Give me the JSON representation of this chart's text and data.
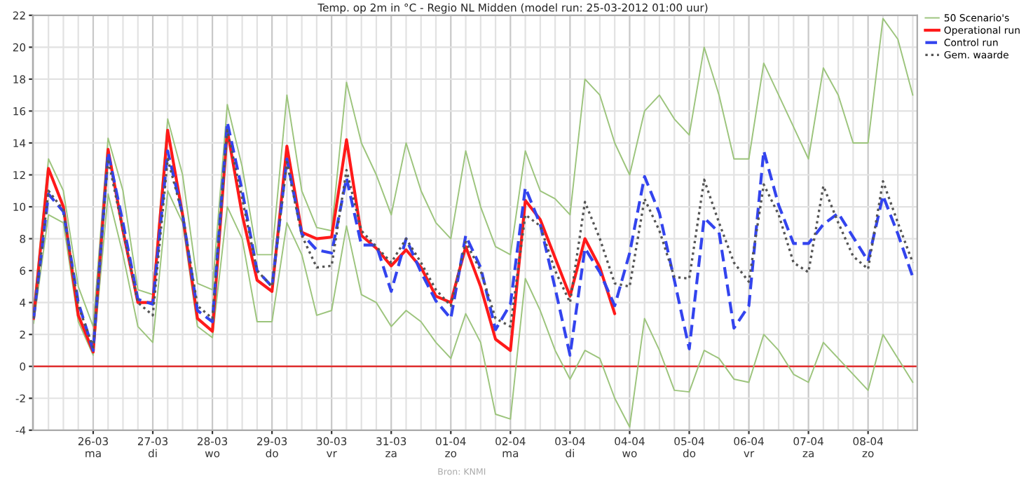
{
  "chart_data": {
    "type": "line",
    "title": "Temp. op 2m in °C - Regio NL Midden (model run: 25-03-2012 01:00 uur)",
    "ylim": [
      -4,
      22
    ],
    "yticks": [
      -4,
      -2,
      0,
      2,
      4,
      6,
      8,
      10,
      12,
      14,
      16,
      18,
      20,
      22
    ],
    "categories": [
      null,
      null,
      null,
      null,
      "26-03\nma",
      null,
      null,
      null,
      "27-03\ndi",
      null,
      null,
      null,
      "28-03\nwo",
      null,
      null,
      null,
      "29-03\ndo",
      null,
      null,
      null,
      "30-03\nvr",
      null,
      null,
      null,
      "31-03\nza",
      null,
      null,
      null,
      "01-04\nzo",
      null,
      null,
      null,
      "02-04\nma",
      null,
      null,
      null,
      "03-04\ndi",
      null,
      null,
      null,
      "04-04\nwo",
      null,
      null,
      null,
      "05-04\ndo",
      null,
      null,
      null,
      "06-04\nvr",
      null,
      null,
      null,
      "07-04\nza",
      null,
      null,
      null,
      "08-04\nzo",
      null,
      null,
      null
    ],
    "grid": true,
    "legend": "top right",
    "ref_lines": [
      {
        "axis": "y",
        "value": 0,
        "color": "#e03030"
      }
    ],
    "annotations": [
      "Bron: KNMI"
    ],
    "series": [
      {
        "name": "50 Scenario's",
        "color": "#9cc47c",
        "line_style": "solid",
        "values": [
          3.5,
          13,
          11,
          5,
          2.5,
          14.3,
          11,
          4.8,
          4.5,
          15.5,
          12,
          5.2,
          4.8,
          16.4,
          12.5,
          7,
          7,
          17,
          11,
          8.7,
          8.5,
          17.8,
          14,
          12,
          9.5,
          14,
          11,
          9,
          8,
          13.5,
          10,
          7.5,
          7,
          13.5,
          11,
          10.5,
          9.5,
          18,
          17,
          14,
          12,
          16,
          17,
          15.5,
          14.5,
          20,
          17,
          13,
          13,
          19,
          17,
          15,
          13,
          18.7,
          17,
          14,
          14,
          21.8,
          20.5,
          17
        ]
      },
      {
        "color": "#9cc47c",
        "line_style": "solid",
        "values": [
          2.7,
          9.5,
          9,
          2.8,
          0.7,
          10.8,
          7,
          2.5,
          1.5,
          11,
          9,
          2.5,
          1.8,
          10,
          8,
          2.8,
          2.8,
          9,
          7,
          3.2,
          3.5,
          8.8,
          4.5,
          4,
          2.5,
          3.5,
          2.8,
          1.5,
          0.5,
          3.3,
          1.5,
          -3,
          -3.3,
          5.5,
          3.5,
          1,
          -0.8,
          1,
          0.5,
          -2,
          -3.8,
          3,
          1,
          -1.5,
          -1.6,
          1,
          0.5,
          -0.8,
          -1,
          2,
          1,
          -0.5,
          -1,
          1.5,
          0.5,
          -0.5,
          -1.5,
          2,
          0.5,
          -1
        ]
      },
      {
        "name": "Operational run",
        "color": "#ff1a1a",
        "line_style": "solid",
        "values": [
          3.0,
          12.4,
          10.0,
          3.2,
          0.9,
          13.6,
          8.5,
          4.0,
          4.0,
          14.8,
          9.5,
          3.0,
          2.2,
          14.8,
          9.5,
          5.4,
          4.7,
          13.8,
          8.4,
          8.0,
          8.1,
          14.2,
          8.2,
          7.4,
          6.3,
          7.3,
          6.2,
          4.4,
          4.0,
          7.5,
          5.0,
          1.7,
          1.0,
          10.4,
          9.2,
          6.8,
          4.4,
          8.0,
          6.2,
          3.3,
          null,
          null,
          null,
          null,
          null,
          null,
          null,
          null,
          null,
          null,
          null,
          null,
          null,
          null,
          null,
          null,
          null,
          null,
          null,
          null
        ]
      },
      {
        "name": "Control run",
        "color": "#3344ee",
        "line_style": "dashed",
        "values": [
          3.0,
          10.8,
          9.7,
          4.0,
          1.0,
          13.4,
          9.0,
          4.2,
          3.9,
          13.5,
          9.5,
          3.5,
          2.8,
          15.3,
          11,
          6.0,
          5.0,
          13.0,
          8.3,
          7.3,
          7.1,
          11.8,
          7.6,
          7.6,
          4.7,
          8.0,
          5.9,
          4.1,
          3.0,
          8.2,
          6.2,
          2.3,
          3.9,
          11.2,
          8.9,
          4.9,
          0.7,
          7.4,
          5.9,
          3.8,
          7.1,
          11.9,
          9.6,
          5.4,
          1.1,
          9.3,
          8.4,
          2.4,
          3.8,
          13.5,
          10.1,
          7.7,
          7.7,
          8.9,
          9.6,
          8.1,
          6.6,
          10.7,
          8.3,
          5.6
        ]
      },
      {
        "name": "Gem. waarde",
        "color": "#555555",
        "line_style": "dotted",
        "values": [
          3.0,
          11,
          9.8,
          3.8,
          1.2,
          13.0,
          8.5,
          4.0,
          3.2,
          13.0,
          9.5,
          3.8,
          3.0,
          14.8,
          10.5,
          6.0,
          5.0,
          12.8,
          8.2,
          6.2,
          6.3,
          12.3,
          8.5,
          7.5,
          6.5,
          8.0,
          6.5,
          4.8,
          3.8,
          7.8,
          6.0,
          3.0,
          2.5,
          9.5,
          8.8,
          6.0,
          4.0,
          10.3,
          8.0,
          5.2,
          5.0,
          10.5,
          8.5,
          5.6,
          5.5,
          11.7,
          9.0,
          6.5,
          5.3,
          11.4,
          9.5,
          6.5,
          5.9,
          11.3,
          9.0,
          6.9,
          6.1,
          11.6,
          9.0,
          6.5
        ]
      }
    ]
  }
}
